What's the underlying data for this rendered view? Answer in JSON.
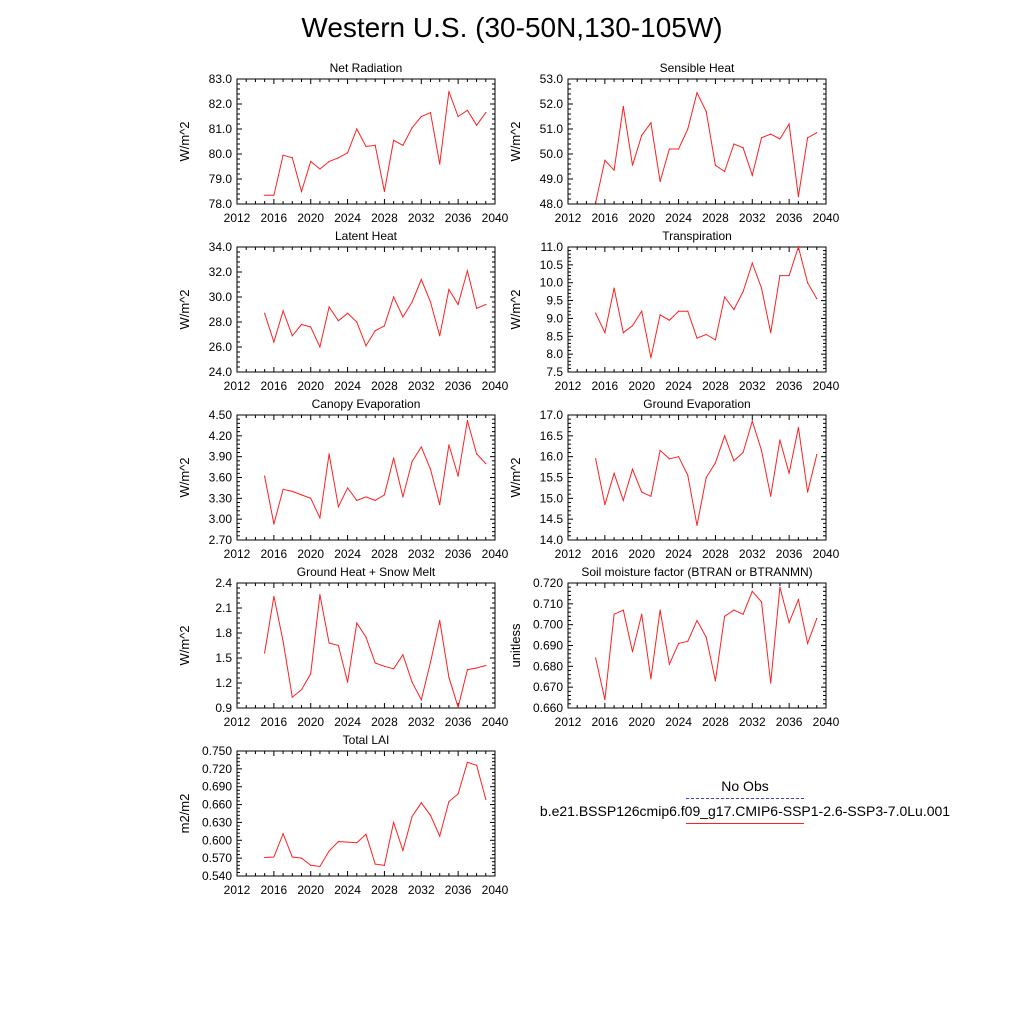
{
  "title": "Western U.S. (30-50N,130-105W)",
  "legend": {
    "obs_label": "No Obs",
    "model_label": "b.e21.BSSP126cmip6.f09_g17.CMIP6-SSP1-2.6-SSP3-7.0Lu.001",
    "obs_color": "#3b3bd6",
    "model_color": "#ff2020"
  },
  "chart_data": [
    {
      "type": "line",
      "title": "Net Radiation",
      "ylabel": "W/m^2",
      "xlim": [
        2012,
        2040
      ],
      "xticks": [
        "2012",
        "2016",
        "2020",
        "2024",
        "2028",
        "2032",
        "2036",
        "2040"
      ],
      "ylim": [
        78.0,
        83.0
      ],
      "yticks": [
        "78.0",
        "79.0",
        "80.0",
        "81.0",
        "82.0",
        "83.0"
      ],
      "x": [
        2015,
        2016,
        2017,
        2018,
        2019,
        2020,
        2021,
        2022,
        2023,
        2024,
        2025,
        2026,
        2027,
        2028,
        2029,
        2030,
        2031,
        2032,
        2033,
        2034,
        2035,
        2036,
        2037,
        2038,
        2039
      ],
      "y": [
        78.35,
        78.35,
        79.95,
        79.85,
        78.5,
        79.7,
        79.4,
        79.7,
        79.85,
        80.05,
        81.0,
        80.3,
        80.35,
        78.5,
        80.55,
        80.35,
        81.05,
        81.5,
        81.65,
        79.6,
        82.5,
        81.5,
        81.75,
        81.15,
        81.65
      ]
    },
    {
      "type": "line",
      "title": "Sensible Heat",
      "ylabel": "W/m^2",
      "xlim": [
        2012,
        2040
      ],
      "xticks": [
        "2012",
        "2016",
        "2020",
        "2024",
        "2028",
        "2032",
        "2036",
        "2040"
      ],
      "ylim": [
        48.0,
        53.0
      ],
      "yticks": [
        "48.0",
        "49.0",
        "50.0",
        "51.0",
        "52.0",
        "53.0"
      ],
      "x": [
        2015,
        2016,
        2017,
        2018,
        2019,
        2020,
        2021,
        2022,
        2023,
        2024,
        2025,
        2026,
        2027,
        2028,
        2029,
        2030,
        2031,
        2032,
        2033,
        2034,
        2035,
        2036,
        2037,
        2038,
        2039
      ],
      "y": [
        48.05,
        49.75,
        49.35,
        51.9,
        49.55,
        50.75,
        51.25,
        48.9,
        50.2,
        50.2,
        51.0,
        52.45,
        51.7,
        49.55,
        49.3,
        50.4,
        50.25,
        49.15,
        50.65,
        50.8,
        50.6,
        51.2,
        48.3,
        50.65,
        50.85
      ]
    },
    {
      "type": "line",
      "title": "Latent Heat",
      "ylabel": "W/m^2",
      "xlim": [
        2012,
        2040
      ],
      "xticks": [
        "2012",
        "2016",
        "2020",
        "2024",
        "2028",
        "2032",
        "2036",
        "2040"
      ],
      "ylim": [
        24.0,
        34.0
      ],
      "yticks": [
        "24.0",
        "26.0",
        "28.0",
        "30.0",
        "32.0",
        "34.0"
      ],
      "x": [
        2015,
        2016,
        2017,
        2018,
        2019,
        2020,
        2021,
        2022,
        2023,
        2024,
        2025,
        2026,
        2027,
        2028,
        2029,
        2030,
        2031,
        2032,
        2033,
        2034,
        2035,
        2036,
        2037,
        2038,
        2039
      ],
      "y": [
        28.7,
        26.4,
        28.9,
        26.9,
        27.8,
        27.6,
        26.0,
        29.2,
        28.1,
        28.7,
        28.0,
        26.1,
        27.3,
        27.7,
        30.0,
        28.4,
        29.6,
        31.4,
        29.6,
        26.9,
        30.6,
        29.4,
        32.1,
        29.1,
        29.4
      ]
    },
    {
      "type": "line",
      "title": "Transpiration",
      "ylabel": "W/m^2",
      "xlim": [
        2012,
        2040
      ],
      "xticks": [
        "2012",
        "2016",
        "2020",
        "2024",
        "2028",
        "2032",
        "2036",
        "2040"
      ],
      "ylim": [
        7.5,
        11.0
      ],
      "yticks": [
        "7.5",
        "8.0",
        "8.5",
        "9.0",
        "9.5",
        "10.0",
        "10.5",
        "11.0"
      ],
      "x": [
        2015,
        2016,
        2017,
        2018,
        2019,
        2020,
        2021,
        2022,
        2023,
        2024,
        2025,
        2026,
        2027,
        2028,
        2029,
        2030,
        2031,
        2032,
        2033,
        2034,
        2035,
        2036,
        2037,
        2038,
        2039
      ],
      "y": [
        9.15,
        8.6,
        9.85,
        8.6,
        8.8,
        9.2,
        7.9,
        9.1,
        8.95,
        9.2,
        9.2,
        8.45,
        8.55,
        8.4,
        9.6,
        9.25,
        9.75,
        10.55,
        9.85,
        8.6,
        10.2,
        10.2,
        11.0,
        10.0,
        9.55
      ]
    },
    {
      "type": "line",
      "title": "Canopy Evaporation",
      "ylabel": "W/m^2",
      "xlim": [
        2012,
        2040
      ],
      "xticks": [
        "2012",
        "2016",
        "2020",
        "2024",
        "2028",
        "2032",
        "2036",
        "2040"
      ],
      "ylim": [
        2.7,
        4.5
      ],
      "yticks": [
        "2.70",
        "3.00",
        "3.30",
        "3.60",
        "3.90",
        "4.20",
        "4.50"
      ],
      "x": [
        2015,
        2016,
        2017,
        2018,
        2019,
        2020,
        2021,
        2022,
        2023,
        2024,
        2025,
        2026,
        2027,
        2028,
        2029,
        2030,
        2031,
        2032,
        2033,
        2034,
        2035,
        2036,
        2037,
        2038,
        2039
      ],
      "y": [
        3.62,
        2.93,
        3.43,
        3.4,
        3.35,
        3.3,
        3.02,
        3.94,
        3.18,
        3.45,
        3.27,
        3.32,
        3.27,
        3.35,
        3.88,
        3.32,
        3.83,
        4.04,
        3.72,
        3.21,
        4.07,
        3.62,
        4.42,
        3.94,
        3.8
      ]
    },
    {
      "type": "line",
      "title": "Ground Evaporation",
      "ylabel": "W/m^2",
      "xlim": [
        2012,
        2040
      ],
      "xticks": [
        "2012",
        "2016",
        "2020",
        "2024",
        "2028",
        "2032",
        "2036",
        "2040"
      ],
      "ylim": [
        14.0,
        17.0
      ],
      "yticks": [
        "14.0",
        "14.5",
        "15.0",
        "15.5",
        "16.0",
        "16.5",
        "17.0"
      ],
      "x": [
        2015,
        2016,
        2017,
        2018,
        2019,
        2020,
        2021,
        2022,
        2023,
        2024,
        2025,
        2026,
        2027,
        2028,
        2029,
        2030,
        2031,
        2032,
        2033,
        2034,
        2035,
        2036,
        2037,
        2038,
        2039
      ],
      "y": [
        15.95,
        14.85,
        15.6,
        14.95,
        15.7,
        15.15,
        15.05,
        16.15,
        15.95,
        16.0,
        15.55,
        14.35,
        15.5,
        15.85,
        16.5,
        15.9,
        16.1,
        16.85,
        16.15,
        15.05,
        16.4,
        15.6,
        16.7,
        15.15,
        16.05
      ]
    },
    {
      "type": "line",
      "title": "Ground Heat + Snow Melt",
      "ylabel": "W/m^2",
      "xlim": [
        2012,
        2040
      ],
      "xticks": [
        "2012",
        "2016",
        "2020",
        "2024",
        "2028",
        "2032",
        "2036",
        "2040"
      ],
      "ylim": [
        0.9,
        2.4
      ],
      "yticks": [
        "0.9",
        "1.2",
        "1.5",
        "1.8",
        "2.1",
        "2.4"
      ],
      "x": [
        2015,
        2016,
        2017,
        2018,
        2019,
        2020,
        2021,
        2022,
        2023,
        2024,
        2025,
        2026,
        2027,
        2028,
        2029,
        2030,
        2031,
        2032,
        2033,
        2034,
        2035,
        2036,
        2037,
        2038,
        2039
      ],
      "y": [
        1.56,
        2.24,
        1.7,
        1.03,
        1.12,
        1.31,
        2.26,
        1.68,
        1.65,
        1.21,
        1.92,
        1.75,
        1.44,
        1.4,
        1.37,
        1.54,
        1.21,
        1.0,
        1.45,
        1.95,
        1.27,
        0.91,
        1.36,
        1.38,
        1.41
      ]
    },
    {
      "type": "line",
      "title": "Soil moisture factor (BTRAN or BTRANMN)",
      "ylabel": "unitless",
      "xlim": [
        2012,
        2040
      ],
      "xticks": [
        "2012",
        "2016",
        "2020",
        "2024",
        "2028",
        "2032",
        "2036",
        "2040"
      ],
      "ylim": [
        0.66,
        0.72
      ],
      "yticks": [
        "0.660",
        "0.670",
        "0.680",
        "0.690",
        "0.700",
        "0.710",
        "0.720"
      ],
      "x": [
        2015,
        2016,
        2017,
        2018,
        2019,
        2020,
        2021,
        2022,
        2023,
        2024,
        2025,
        2026,
        2027,
        2028,
        2029,
        2030,
        2031,
        2032,
        2033,
        2034,
        2035,
        2036,
        2037,
        2038,
        2039
      ],
      "y": [
        0.684,
        0.664,
        0.705,
        0.707,
        0.687,
        0.705,
        0.674,
        0.707,
        0.681,
        0.691,
        0.692,
        0.702,
        0.694,
        0.673,
        0.704,
        0.707,
        0.705,
        0.716,
        0.711,
        0.672,
        0.718,
        0.701,
        0.712,
        0.691,
        0.703
      ]
    },
    {
      "type": "line",
      "title": "Total LAI",
      "ylabel": "m2/m2",
      "xlim": [
        2012,
        2040
      ],
      "xticks": [
        "2012",
        "2016",
        "2020",
        "2024",
        "2028",
        "2032",
        "2036",
        "2040"
      ],
      "ylim": [
        0.54,
        0.75
      ],
      "yticks": [
        "0.540",
        "0.570",
        "0.600",
        "0.630",
        "0.660",
        "0.690",
        "0.720",
        "0.750"
      ],
      "x": [
        2015,
        2016,
        2017,
        2018,
        2019,
        2020,
        2021,
        2022,
        2023,
        2024,
        2025,
        2026,
        2027,
        2028,
        2029,
        2030,
        2031,
        2032,
        2033,
        2034,
        2035,
        2036,
        2037,
        2038,
        2039
      ],
      "y": [
        0.571,
        0.572,
        0.611,
        0.572,
        0.57,
        0.558,
        0.556,
        0.582,
        0.598,
        0.597,
        0.596,
        0.61,
        0.56,
        0.558,
        0.63,
        0.583,
        0.64,
        0.663,
        0.642,
        0.607,
        0.665,
        0.678,
        0.731,
        0.726,
        0.669
      ]
    }
  ]
}
